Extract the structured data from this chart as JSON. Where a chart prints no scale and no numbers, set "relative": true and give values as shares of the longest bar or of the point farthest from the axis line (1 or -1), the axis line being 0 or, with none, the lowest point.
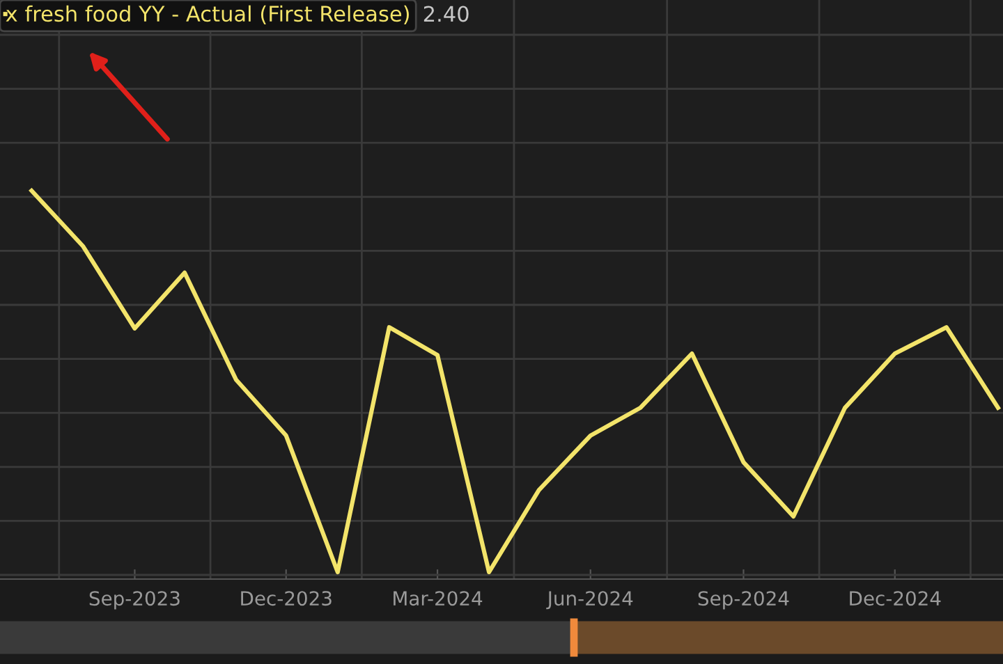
{
  "chart_data": {
    "type": "line",
    "relative": true,
    "x": [
      "2023-07-01",
      "2023-08-01",
      "2023-09-01",
      "2023-10-01",
      "2023-11-01",
      "2023-12-01",
      "2024-01-01",
      "2024-02-01",
      "2024-03-01",
      "2024-04-01",
      "2024-05-01",
      "2024-06-01",
      "2024-07-01",
      "2024-08-01",
      "2024-09-01",
      "2024-10-01",
      "2024-11-01",
      "2024-12-01",
      "2025-01-01",
      "2025-02-01"
    ],
    "series": [
      {
        "name": "x fresh food YY - Actual (First Release)",
        "color": "#f3e46a",
        "values": [
          1.0,
          0.854,
          0.639,
          0.785,
          0.504,
          0.358,
          0,
          0.642,
          0.569,
          0,
          0.215,
          0.358,
          0.431,
          0.573,
          0.288,
          0.146,
          0.431,
          0.573,
          0.642,
          0.431
        ]
      }
    ],
    "xlim": [
      "2023-06-12",
      "2025-02-04"
    ],
    "xticks": [
      {
        "value": "2023-09-01",
        "label": "Sep-2023"
      },
      {
        "value": "2023-12-01",
        "label": "Dec-2023"
      },
      {
        "value": "2024-03-01",
        "label": "Mar-2024"
      },
      {
        "value": "2024-06-01",
        "label": "Jun-2024"
      },
      {
        "value": "2024-09-01",
        "label": "Sep-2024"
      },
      {
        "value": "2024-12-01",
        "label": "Dec-2024"
      }
    ],
    "annotations": [
      "2.40"
    ],
    "grid": true,
    "legend": "top left",
    "marker": "none",
    "line_style": "solid"
  }
}
